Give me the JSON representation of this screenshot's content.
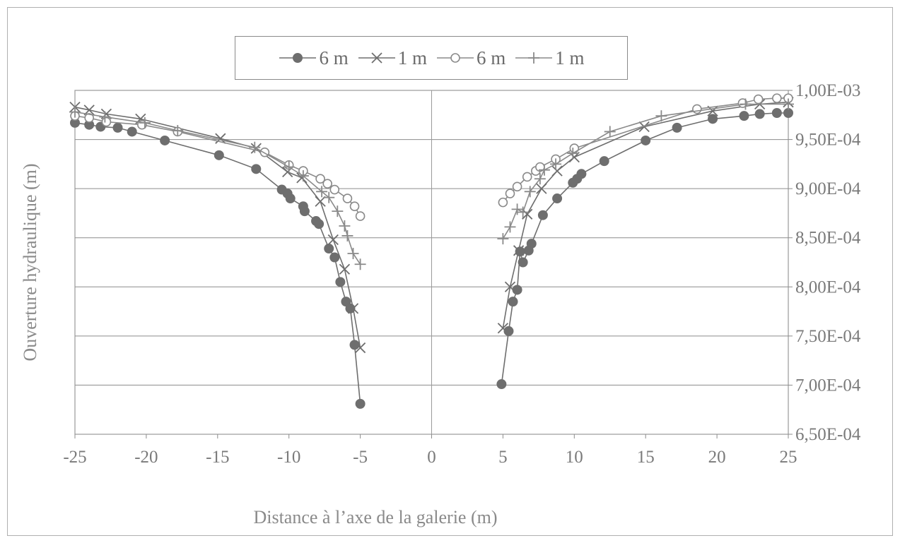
{
  "chart_data": {
    "type": "scatter",
    "title": "",
    "xlabel": "Distance à l’axe de la galerie (m)",
    "ylabel": "Ouverture hydraulique (m)",
    "xlim": [
      -25,
      25
    ],
    "ylim": [
      0.00065,
      0.001
    ],
    "x_ticks": [
      -25,
      -20,
      -15,
      -10,
      -5,
      0,
      5,
      10,
      15,
      20,
      25
    ],
    "x_tick_labels": [
      "-25",
      "-20",
      "-15",
      "-10",
      "-5",
      "0",
      "5",
      "10",
      "15",
      "20",
      "25"
    ],
    "y_ticks": [
      0.00065,
      0.0007,
      0.00075,
      0.0008,
      0.00085,
      0.0009,
      0.00095,
      0.001
    ],
    "y_tick_labels": [
      "6,50E-04",
      "7,00E-04",
      "7,50E-04",
      "8,00E-04",
      "8,50E-04",
      "9,00E-04",
      "9,50E-04",
      "1,00E-03"
    ],
    "y_axis_side": "right",
    "grid": "horizontal",
    "legend_position": "top-center",
    "series": [
      {
        "name": "6 m",
        "marker": "filled-circle",
        "line": true,
        "color": "#6e6e6e",
        "points": [
          [
            -25,
            0.000967
          ],
          [
            -24,
            0.000965
          ],
          [
            -23.2,
            0.000963
          ],
          [
            -22,
            0.000962
          ],
          [
            -21,
            0.000958
          ],
          [
            -18.7,
            0.000949
          ],
          [
            -14.9,
            0.000934
          ],
          [
            -12.3,
            0.00092
          ],
          [
            -10.5,
            0.000899
          ],
          [
            -10.1,
            0.000895
          ],
          [
            -9.9,
            0.00089
          ],
          [
            -9,
            0.000882
          ],
          [
            -8.9,
            0.000877
          ],
          [
            -8.1,
            0.000867
          ],
          [
            -7.9,
            0.000864
          ],
          [
            -7.2,
            0.000839
          ],
          [
            -6.8,
            0.00083
          ],
          [
            -6.4,
            0.000805
          ],
          [
            -6.0,
            0.000785
          ],
          [
            -5.7,
            0.000778
          ],
          [
            -5.4,
            0.000741
          ],
          [
            -5.0,
            0.000681
          ],
          [
            4.9,
            0.000701
          ],
          [
            5.4,
            0.000755
          ],
          [
            5.7,
            0.000785
          ],
          [
            6.0,
            0.000797
          ],
          [
            6.2,
            0.000836
          ],
          [
            6.4,
            0.000825
          ],
          [
            6.8,
            0.000837
          ],
          [
            7.0,
            0.000844
          ],
          [
            7.8,
            0.000873
          ],
          [
            8.8,
            0.00089
          ],
          [
            9.9,
            0.000906
          ],
          [
            10.2,
            0.00091
          ],
          [
            10.5,
            0.000915
          ],
          [
            12.1,
            0.000928
          ],
          [
            15,
            0.000949
          ],
          [
            17.2,
            0.000962
          ],
          [
            19.7,
            0.000971
          ],
          [
            21.9,
            0.000974
          ],
          [
            23,
            0.000976
          ],
          [
            24.2,
            0.000977
          ],
          [
            25,
            0.000977
          ]
        ]
      },
      {
        "name": "1 m",
        "marker": "x",
        "line": true,
        "color": "#6e6e6e",
        "points": [
          [
            -25,
            0.000983
          ],
          [
            -24,
            0.00098
          ],
          [
            -22.8,
            0.000976
          ],
          [
            -20.4,
            0.000971
          ],
          [
            -14.8,
            0.000951
          ],
          [
            -12.3,
            0.000941
          ],
          [
            -10.1,
            0.000917
          ],
          [
            -9.1,
            0.000911
          ],
          [
            -7.8,
            0.000887
          ],
          [
            -6.9,
            0.000848
          ],
          [
            -6.1,
            0.000818
          ],
          [
            -5.5,
            0.000778
          ],
          [
            -5.0,
            0.000738
          ],
          [
            5.0,
            0.000758
          ],
          [
            5.5,
            0.0008
          ],
          [
            6.1,
            0.000837
          ],
          [
            6.7,
            0.000874
          ],
          [
            7.7,
            0.0009
          ],
          [
            8.8,
            0.000918
          ],
          [
            10.0,
            0.000932
          ],
          [
            14.9,
            0.000963
          ],
          [
            19.7,
            0.000979
          ],
          [
            23,
            0.000986
          ],
          [
            25,
            0.000988
          ]
        ]
      },
      {
        "name": "6 m",
        "marker": "open-circle",
        "line": true,
        "color": "#8a8a8a",
        "points": [
          [
            -25,
            0.000974
          ],
          [
            -24,
            0.000972
          ],
          [
            -22.8,
            0.000968
          ],
          [
            -20.3,
            0.000965
          ],
          [
            -17.8,
            0.000958
          ],
          [
            -11.7,
            0.000937
          ],
          [
            -10.0,
            0.000924
          ],
          [
            -9.0,
            0.000918
          ],
          [
            -7.8,
            0.00091
          ],
          [
            -7.3,
            0.000905
          ],
          [
            -6.8,
            0.000899
          ],
          [
            -5.9,
            0.00089
          ],
          [
            -5.4,
            0.000882
          ],
          [
            -5.0,
            0.000872
          ],
          [
            5.0,
            0.000886
          ],
          [
            5.5,
            0.000895
          ],
          [
            6.0,
            0.000902
          ],
          [
            6.7,
            0.000912
          ],
          [
            7.3,
            0.000918
          ],
          [
            7.6,
            0.000922
          ],
          [
            8.7,
            0.00093
          ],
          [
            10.0,
            0.000941
          ],
          [
            18.6,
            0.000981
          ],
          [
            21.8,
            0.000987
          ],
          [
            22.9,
            0.000991
          ],
          [
            24.2,
            0.000992
          ],
          [
            25,
            0.000992
          ]
        ]
      },
      {
        "name": "1 m",
        "marker": "plus",
        "line": true,
        "color": "#8a8a8a",
        "points": [
          [
            -25,
            0.000978
          ],
          [
            -22.9,
            0.000973
          ],
          [
            -20.1,
            0.000967
          ],
          [
            -17.8,
            0.000959
          ],
          [
            -12.4,
            0.000942
          ],
          [
            -10.0,
            0.000922
          ],
          [
            -9.0,
            0.000913
          ],
          [
            -7.7,
            0.000897
          ],
          [
            -7.2,
            0.000891
          ],
          [
            -6.6,
            0.000877
          ],
          [
            -6.1,
            0.000862
          ],
          [
            -5.9,
            0.000852
          ],
          [
            -5.5,
            0.000834
          ],
          [
            -5.0,
            0.000823
          ],
          [
            5.0,
            0.000849
          ],
          [
            5.5,
            0.000861
          ],
          [
            6.0,
            0.000879
          ],
          [
            6.4,
            0.000876
          ],
          [
            6.9,
            0.000897
          ],
          [
            7.6,
            0.00091
          ],
          [
            7.9,
            0.000919
          ],
          [
            8.7,
            0.000925
          ],
          [
            9.9,
            0.000936
          ],
          [
            12.5,
            0.000958
          ],
          [
            16.1,
            0.000974
          ],
          [
            22.0,
            0.000986
          ],
          [
            25,
            0.000986
          ]
        ]
      }
    ]
  }
}
